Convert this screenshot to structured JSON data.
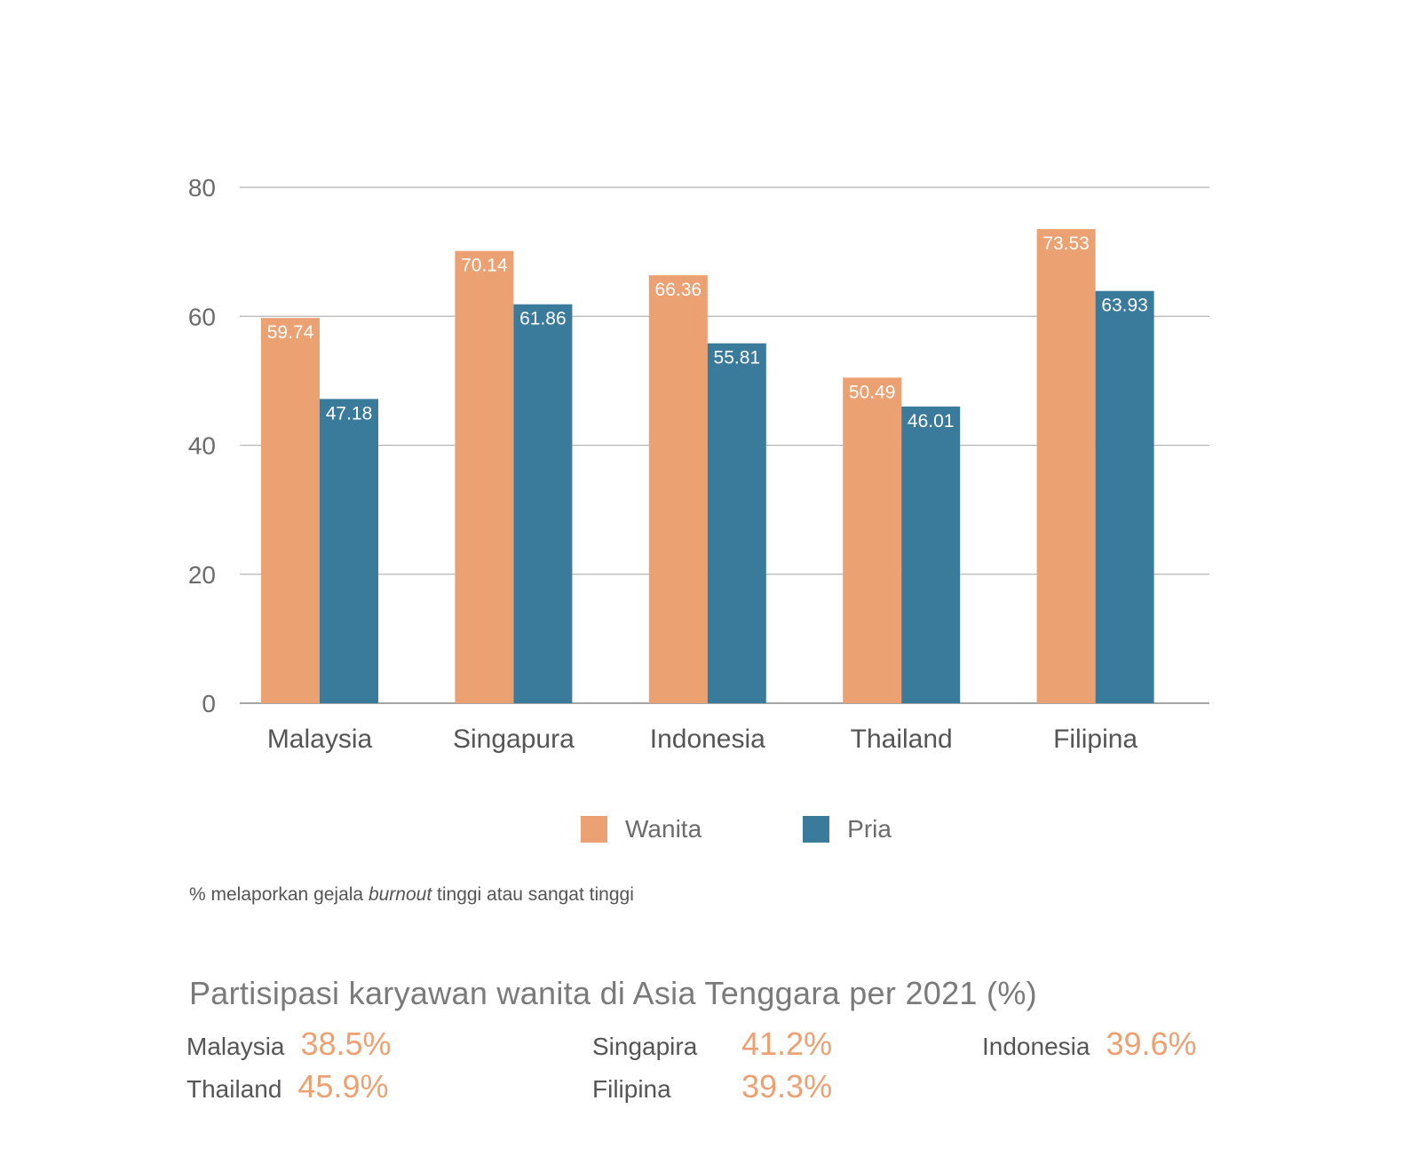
{
  "chart_data": {
    "type": "bar",
    "categories": [
      "Malaysia",
      "Singapura",
      "Indonesia",
      "Thailand",
      "Filipina"
    ],
    "series": [
      {
        "name": "Wanita",
        "color": "#eba172",
        "values": [
          59.74,
          70.14,
          66.36,
          50.49,
          73.53
        ]
      },
      {
        "name": "Pria",
        "color": "#3a7a9b",
        "values": [
          47.18,
          61.86,
          55.81,
          46.01,
          63.93
        ]
      }
    ],
    "value_labels": {
      "Wanita": [
        "59.74",
        "70.14",
        "66.36",
        "50.49",
        "73.53"
      ],
      "Pria": [
        "47.18",
        "61.86",
        "55.81",
        "46.01",
        "63.93"
      ]
    },
    "yticks": [
      "0",
      "20",
      "40",
      "60",
      "80"
    ],
    "ylim": [
      0,
      80
    ],
    "grid": true,
    "legend_position": "bottom-center"
  },
  "legend": {
    "wanita": "Wanita",
    "pria": "Pria"
  },
  "note": {
    "prefix": "% melaporkan gejala ",
    "emphasis": "burnout",
    "suffix": " tinggi atau sangat tinggi"
  },
  "participation": {
    "title": "Partisipasi karyawan wanita di Asia Tenggara per 2021 (%)",
    "items": [
      {
        "country": "Malaysia",
        "value": "38.5%"
      },
      {
        "country": "Singapira",
        "value": "41.2%"
      },
      {
        "country": "Indonesia",
        "value": "39.6%"
      },
      {
        "country": "Thailand",
        "value": "45.9%"
      },
      {
        "country": "Filipina",
        "value": "39.3%"
      }
    ]
  }
}
